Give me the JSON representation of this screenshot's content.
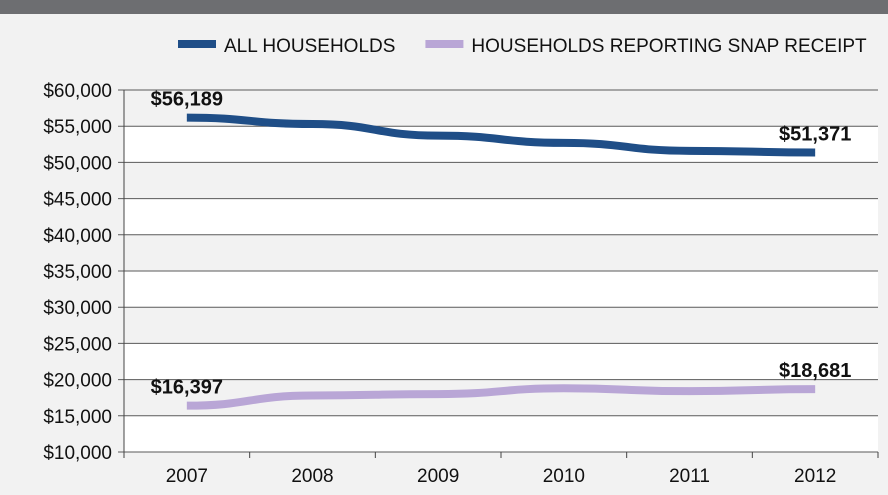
{
  "chart_data": {
    "type": "line",
    "x": [
      "2007",
      "2008",
      "2009",
      "2010",
      "2011",
      "2012"
    ],
    "series": [
      {
        "name": "ALL HOUSEHOLDS",
        "color": "#1f4e87",
        "values": [
          56189,
          55300,
          53700,
          52700,
          51600,
          51371
        ],
        "labels": [
          {
            "index": 0,
            "text": "$56,189"
          },
          {
            "index": 5,
            "text": "$51,371"
          }
        ]
      },
      {
        "name": "HOUSEHOLDS REPORTING SNAP RECEIPT",
        "color": "#b9a6d6",
        "values": [
          16397,
          17800,
          18000,
          18800,
          18400,
          18681
        ],
        "labels": [
          {
            "index": 0,
            "text": "$16,397"
          },
          {
            "index": 5,
            "text": "$18,681"
          }
        ]
      }
    ],
    "ylim": [
      10000,
      60000
    ],
    "yticks": [
      {
        "value": 60000,
        "label": "$60,000"
      },
      {
        "value": 55000,
        "label": "$55,000"
      },
      {
        "value": 50000,
        "label": "$50,000"
      },
      {
        "value": 45000,
        "label": "$45,000"
      },
      {
        "value": 40000,
        "label": "$40,000"
      },
      {
        "value": 35000,
        "label": "$35,000"
      },
      {
        "value": 30000,
        "label": "$30,000"
      },
      {
        "value": 25000,
        "label": "$25,000"
      },
      {
        "value": 20000,
        "label": "$20,000"
      },
      {
        "value": 15000,
        "label": "$15,000"
      },
      {
        "value": 10000,
        "label": "$10,000"
      }
    ],
    "grid": "horizontal",
    "legend_position": "top",
    "colors": {
      "background": "#f2f2f2",
      "gridline": "#5a5a5a",
      "top_bar": "#6d6e71"
    }
  }
}
